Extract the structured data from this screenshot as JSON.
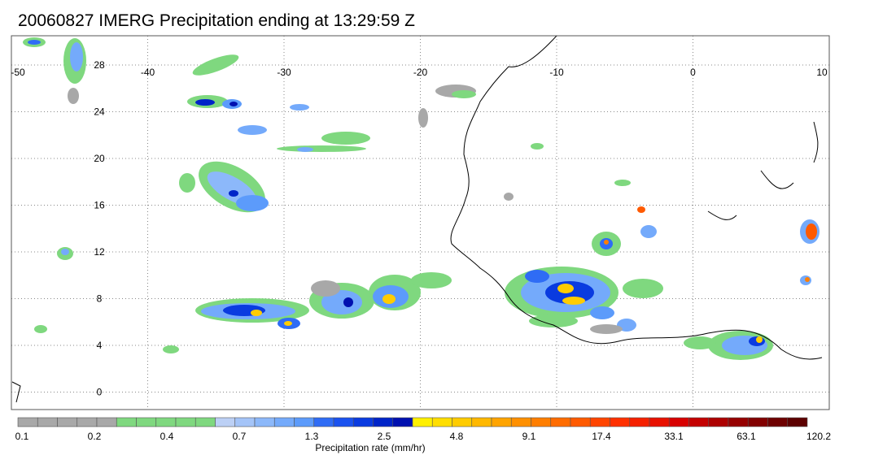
{
  "title": "20060827 IMERG Precipitation ending at 13:29:59 Z",
  "map": {
    "lon_range": [
      -50,
      10
    ],
    "lat_range": [
      -1.5,
      30.5
    ],
    "lon_ticks": [
      "-50",
      "-40",
      "-30",
      "-20",
      "-10",
      "0",
      "10"
    ],
    "lat_ticks": [
      "0",
      "4",
      "8",
      "12",
      "16",
      "20",
      "24",
      "28"
    ],
    "grid": "dotted"
  },
  "colorbar": {
    "label": "Precipitation rate (mm/hr)",
    "tick_labels": [
      "0.1",
      "0.2",
      "0.4",
      "0.7",
      "1.3",
      "2.5",
      "4.8",
      "9.1",
      "17.4",
      "33.1",
      "63.1",
      "120.2"
    ],
    "colors": [
      "#a8a8a8",
      "#a8a8a8",
      "#a8a8a8",
      "#a8a8a8",
      "#a8a8a8",
      "#7fd87f",
      "#7fd87f",
      "#7fd87f",
      "#7fd87f",
      "#7fd87f",
      "#bcd0f5",
      "#a4c4f8",
      "#8cb8fa",
      "#74aafb",
      "#5c9bfb",
      "#2f6cf5",
      "#1a52ef",
      "#0a3be0",
      "#0024c8",
      "#0010b0",
      "#fff000",
      "#ffde00",
      "#ffcc00",
      "#ffb800",
      "#ffa400",
      "#ff9000",
      "#ff7e00",
      "#ff6c00",
      "#ff5a00",
      "#ff4400",
      "#ff3000",
      "#f52000",
      "#e81000",
      "#d80000",
      "#c40000",
      "#ad0000",
      "#960000",
      "#820000",
      "#6e0000",
      "#5c0000"
    ]
  }
}
